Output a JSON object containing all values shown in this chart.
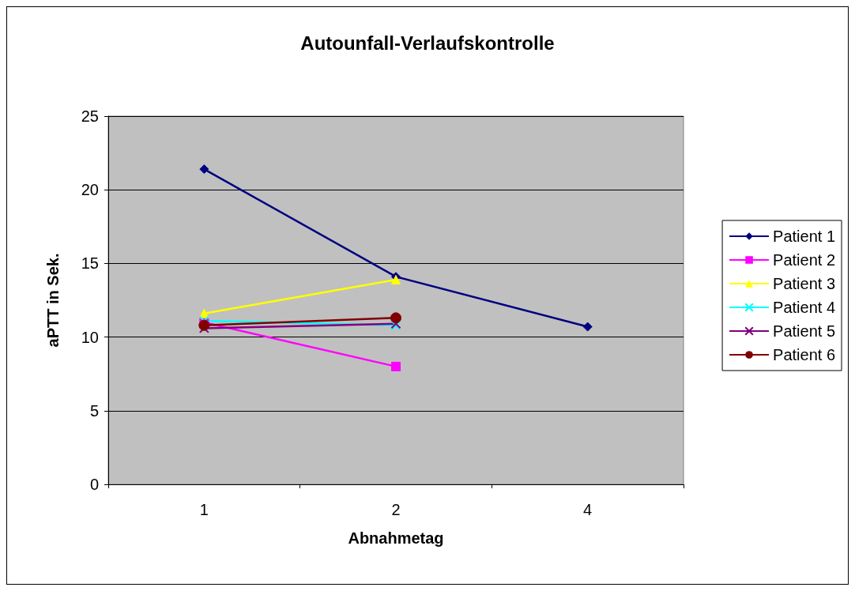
{
  "chart_data": {
    "type": "line",
    "title": "Autounfall-Verlaufskontrolle",
    "xlabel": "Abnahmetag",
    "ylabel": "aPTT in Sek.",
    "categories": [
      "1",
      "2",
      "4"
    ],
    "series": [
      {
        "name": "Patient 1",
        "color": "#000080",
        "marker": "diamond",
        "values": [
          21.4,
          14.1,
          10.7
        ]
      },
      {
        "name": "Patient 2",
        "color": "#ff00ff",
        "marker": "square",
        "values": [
          11.0,
          8.0,
          null
        ]
      },
      {
        "name": "Patient 3",
        "color": "#ffff00",
        "marker": "triangle",
        "values": [
          11.6,
          13.9,
          null
        ]
      },
      {
        "name": "Patient 4",
        "color": "#00ffff",
        "marker": "cross",
        "values": [
          11.1,
          10.8,
          null
        ]
      },
      {
        "name": "Patient 5",
        "color": "#800080",
        "marker": "cross",
        "values": [
          10.6,
          10.9,
          null
        ]
      },
      {
        "name": "Patient 6",
        "color": "#800000",
        "marker": "circle",
        "values": [
          10.8,
          11.3,
          null
        ]
      }
    ],
    "ylim": [
      0,
      25
    ],
    "yticks": [
      0,
      5,
      10,
      15,
      20,
      25
    ],
    "grid": "y",
    "legend": "right"
  }
}
